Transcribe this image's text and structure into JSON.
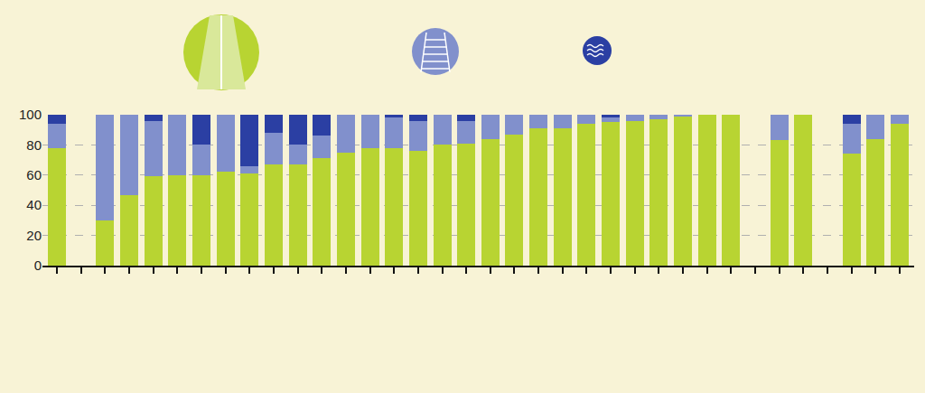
{
  "chart_data": {
    "type": "bar",
    "stacked": true,
    "categories": [
      null,
      null,
      null,
      null,
      null,
      null,
      null,
      null,
      null,
      null,
      null,
      null,
      null,
      null,
      null,
      null,
      null,
      null,
      null,
      null,
      null,
      null,
      null,
      null,
      null,
      null,
      null,
      null,
      null,
      null,
      null,
      null,
      null,
      null,
      null,
      null
    ],
    "series": [
      {
        "color": "#b8d432",
        "values": [
          78,
          null,
          30,
          47,
          59,
          60,
          60,
          62,
          61,
          67,
          67,
          71,
          75,
          78,
          78,
          76,
          80,
          81,
          84,
          87,
          91,
          91,
          94,
          95,
          96,
          97,
          99,
          100,
          100,
          null,
          83,
          100,
          null,
          74,
          84,
          94
        ]
      },
      {
        "color": "#8190cc",
        "values": [
          16,
          null,
          70,
          53,
          37,
          40,
          20,
          38,
          5,
          21,
          13,
          15,
          25,
          22,
          20,
          20,
          20,
          15,
          16,
          13,
          9,
          9,
          6,
          3,
          4,
          3,
          1,
          0,
          0,
          null,
          17,
          0,
          null,
          20,
          16,
          6
        ]
      },
      {
        "color": "#2b3fa3",
        "values": [
          6,
          null,
          0,
          0,
          4,
          0,
          20,
          0,
          34,
          12,
          20,
          14,
          0,
          0,
          2,
          4,
          0,
          4,
          0,
          0,
          0,
          0,
          0,
          2,
          0,
          0,
          0,
          0,
          0,
          null,
          0,
          0,
          null,
          6,
          0,
          0
        ]
      }
    ],
    "ylim": [
      0,
      100
    ],
    "yticks": [
      0,
      20,
      40,
      60,
      80,
      100
    ],
    "grid": true,
    "tick_labels": "y"
  }
}
